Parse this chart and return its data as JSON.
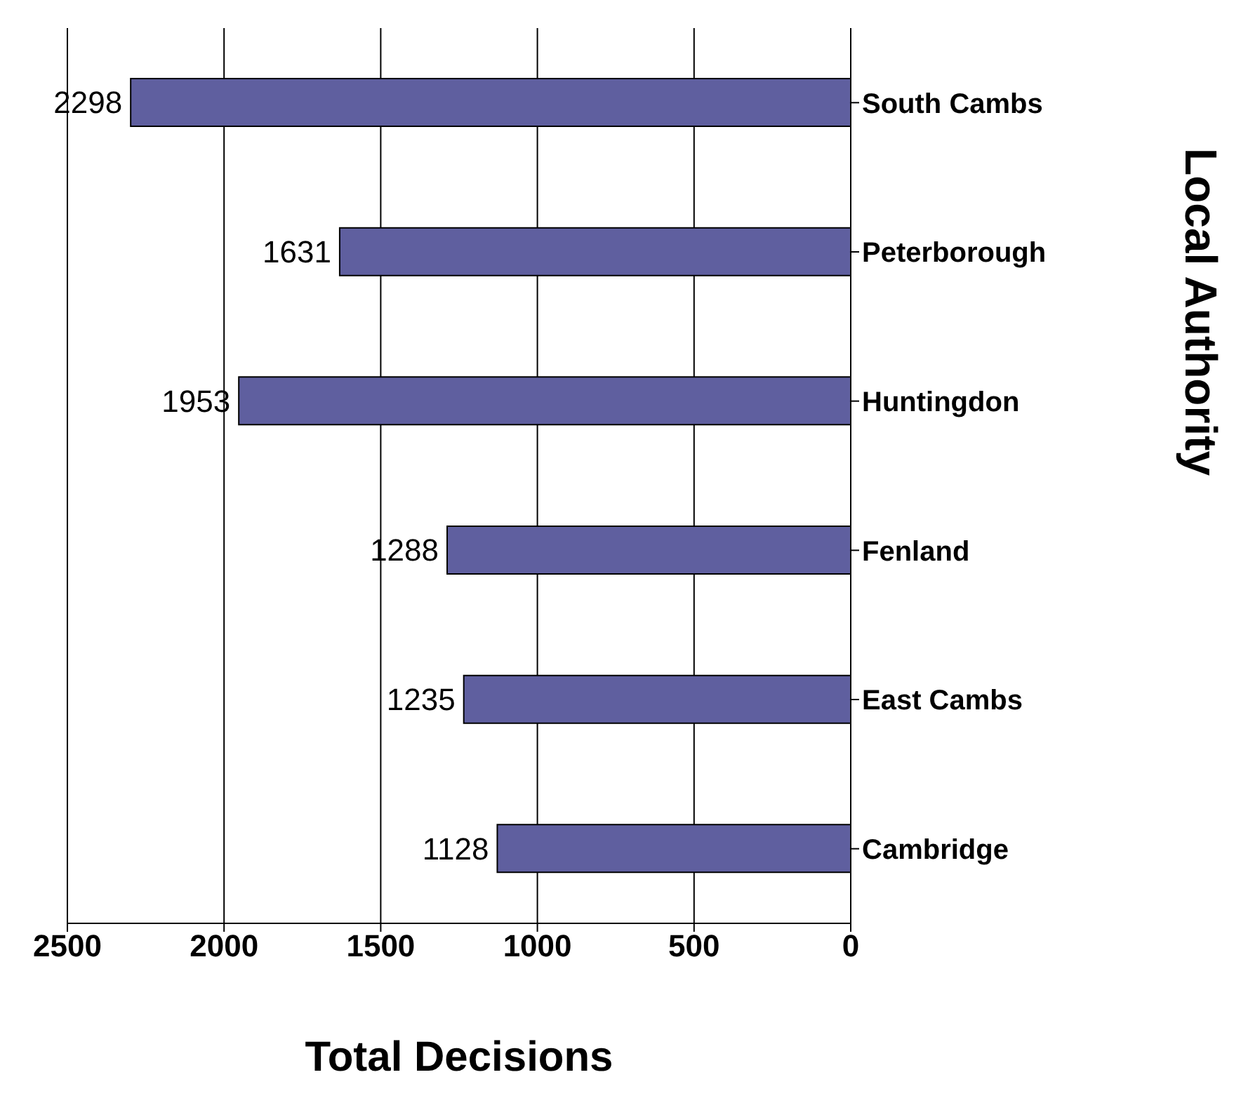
{
  "chart_data": {
    "type": "bar",
    "orientation": "horizontal",
    "xlabel": "Total Decisions",
    "ylabel": "Local Authority",
    "categories": [
      "South Cambs",
      "Peterborough",
      "Huntingdon",
      "Fenland",
      "East Cambs",
      "Cambridge"
    ],
    "values": [
      2298,
      1631,
      1953,
      1288,
      1235,
      1128
    ],
    "color": "#5f5f9f",
    "xlim": [
      2500,
      0
    ],
    "xticks": [
      2500,
      2000,
      1500,
      1000,
      500,
      0
    ],
    "grid": "x",
    "data_labels": true
  }
}
